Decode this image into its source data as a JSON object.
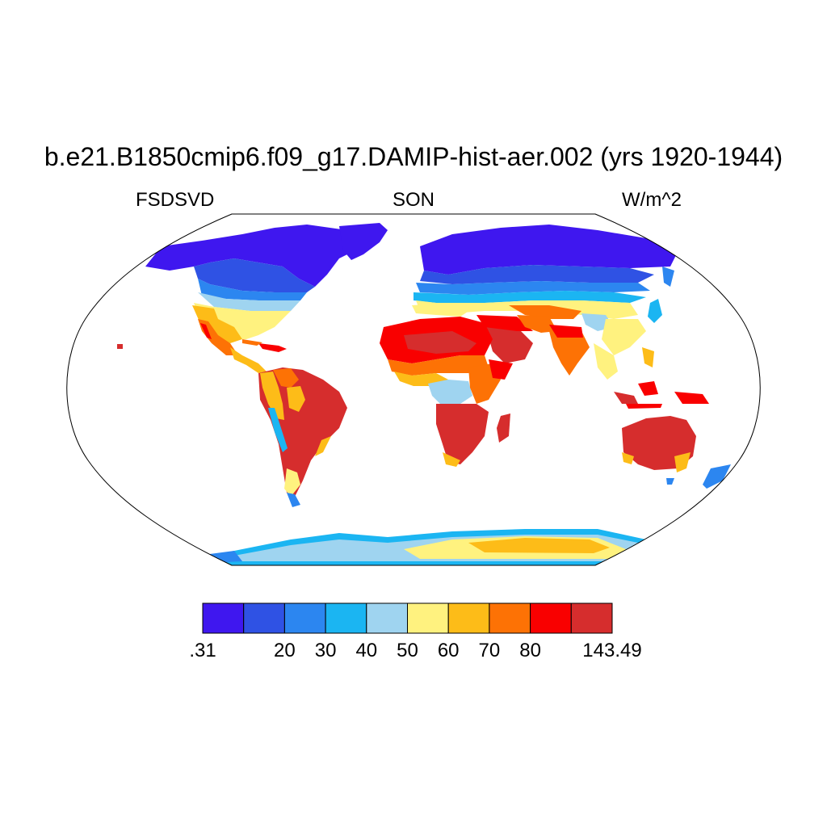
{
  "map": {
    "title": "b.e21.B1850cmip6.f09_g17.DAMIP-hist-aer.002 (yrs 1920-1944)",
    "left_label": "FSDSVD",
    "center_label": "SON",
    "right_label": "W/m^2",
    "projection": "Robinson",
    "colorbar": {
      "colors": [
        "#3f17ef",
        "#2f52e4",
        "#2c86f0",
        "#1bb5f2",
        "#9fd4f0",
        "#fff27f",
        "#fdbc18",
        "#fd7205",
        "#f90000",
        "#d62d2d"
      ],
      "tick_labels": [
        ".31",
        "20",
        "30",
        "40",
        "50",
        "60",
        "70",
        "80",
        "143.49"
      ]
    }
  }
}
